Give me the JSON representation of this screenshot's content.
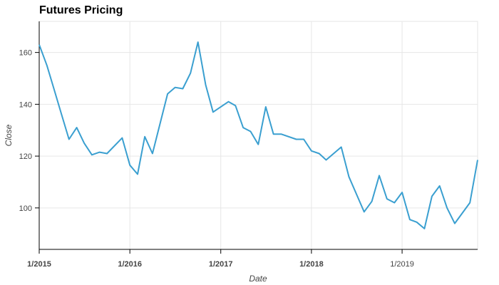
{
  "chart_data": {
    "type": "line",
    "title": "Futures Pricing",
    "xlabel": "Date",
    "ylabel": "Close",
    "xlim": [
      "2015-01-01",
      "2019-11-01"
    ],
    "ylim": [
      84,
      172
    ],
    "x_ticks": [
      "2015-01-01",
      "2016-01-01",
      "2017-01-01",
      "2018-01-01",
      "2019-01-01"
    ],
    "x_tick_labels": [
      "1/2015",
      "1/2016",
      "1/2017",
      "1/2018",
      "1/2019"
    ],
    "y_ticks": [
      100,
      120,
      140,
      160
    ],
    "y_tick_labels": [
      "100",
      "120",
      "140",
      "160"
    ],
    "grid": true,
    "line_color": "#3a9fd0",
    "x": [
      "2015-01-01",
      "2015-02-01",
      "2015-03-01",
      "2015-04-01",
      "2015-05-01",
      "2015-06-01",
      "2015-07-01",
      "2015-08-01",
      "2015-09-01",
      "2015-10-01",
      "2015-12-01",
      "2016-01-01",
      "2016-02-01",
      "2016-03-01",
      "2016-04-01",
      "2016-06-01",
      "2016-07-01",
      "2016-08-01",
      "2016-09-01",
      "2016-10-01",
      "2016-11-01",
      "2016-12-01",
      "2017-02-01",
      "2017-03-01",
      "2017-04-01",
      "2017-05-01",
      "2017-06-01",
      "2017-07-01",
      "2017-08-01",
      "2017-09-01",
      "2017-11-01",
      "2017-12-01",
      "2018-01-01",
      "2018-02-01",
      "2018-03-01",
      "2018-05-01",
      "2018-06-01",
      "2018-08-01",
      "2018-09-01",
      "2018-10-01",
      "2018-11-01",
      "2018-12-01",
      "2019-01-01",
      "2019-02-01",
      "2019-03-01",
      "2019-04-01",
      "2019-05-01",
      "2019-06-01",
      "2019-07-01",
      "2019-08-01",
      "2019-10-01",
      "2019-11-01"
    ],
    "y": [
      163,
      155,
      146,
      136,
      126.5,
      131,
      125,
      120.5,
      121.5,
      121,
      127,
      116.5,
      113,
      127.5,
      121,
      144,
      146.5,
      146,
      152,
      164,
      147.5,
      137,
      141,
      139.5,
      131,
      129.5,
      124.5,
      139,
      128.5,
      128.5,
      126.5,
      126.5,
      122,
      121,
      118.5,
      123.5,
      112,
      98.5,
      102.5,
      112.5,
      103.5,
      102,
      106,
      95.5,
      94.5,
      92,
      104.5,
      108.5,
      100,
      94,
      102,
      118.5
    ]
  }
}
